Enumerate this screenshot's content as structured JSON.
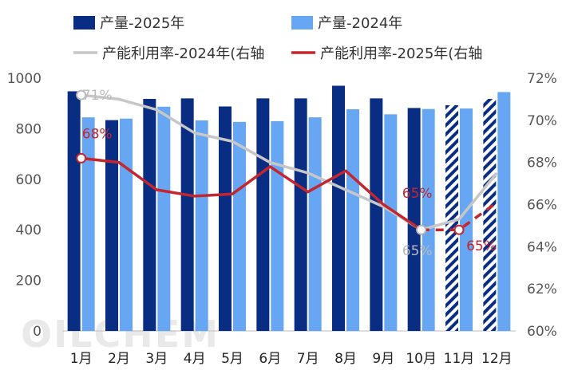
{
  "chart_data": {
    "type": "bar+line",
    "categories": [
      "1月",
      "2月",
      "3月",
      "4月",
      "5月",
      "6月",
      "7月",
      "8月",
      "9月",
      "10月",
      "11月",
      "12月"
    ],
    "series": [
      {
        "name": "产量-2025年",
        "kind": "bar",
        "axis": "left",
        "color": "#0a2d84",
        "values": [
          948,
          834,
          918,
          920,
          888,
          920,
          920,
          970,
          920,
          882,
          893,
          918
        ],
        "hatched_from_index": 10
      },
      {
        "name": "产量-2024年",
        "kind": "bar",
        "axis": "left",
        "color": "#66a6f2",
        "values": [
          845,
          840,
          887,
          833,
          827,
          830,
          845,
          877,
          857,
          878,
          880,
          945
        ]
      },
      {
        "name": "产能利用率-2024年(右轴",
        "kind": "line",
        "axis": "right",
        "color": "#c7c7c7",
        "values": [
          71.2,
          71.0,
          70.5,
          69.4,
          69.0,
          68.0,
          67.5,
          66.7,
          65.9,
          64.8,
          65.3,
          67.5
        ]
      },
      {
        "name": "产能利用率-2025年(右轴",
        "kind": "line",
        "axis": "right",
        "color": "#c4262e",
        "values": [
          68.2,
          68.0,
          66.7,
          66.4,
          66.5,
          67.8,
          66.6,
          67.6,
          66.0,
          64.8,
          64.8,
          66.1
        ],
        "dashed_from_index": 10
      }
    ],
    "y_left": {
      "min": 0,
      "max": 1000,
      "ticks": [
        "0",
        "200",
        "400",
        "600",
        "800",
        "1000"
      ]
    },
    "y_right": {
      "min": 60,
      "max": 72,
      "ticks": [
        "60%",
        "62%",
        "64%",
        "66%",
        "68%",
        "70%",
        "72%"
      ]
    },
    "annotations": [
      {
        "text": "71%",
        "series": 2,
        "index": 0,
        "color": "#bbbbbb"
      },
      {
        "text": "68%",
        "series": 3,
        "index": 0,
        "color": "#c4262e"
      },
      {
        "text": "65%",
        "series": 3,
        "index": 9,
        "color": "#c4262e"
      },
      {
        "text": "65%",
        "series": 2,
        "index": 9,
        "color": "#bbbbbb"
      },
      {
        "text": "65%",
        "series": 3,
        "index": 10,
        "color": "#c4262e"
      }
    ],
    "legend": "top",
    "grid": false,
    "watermark": "OILCHEM"
  }
}
